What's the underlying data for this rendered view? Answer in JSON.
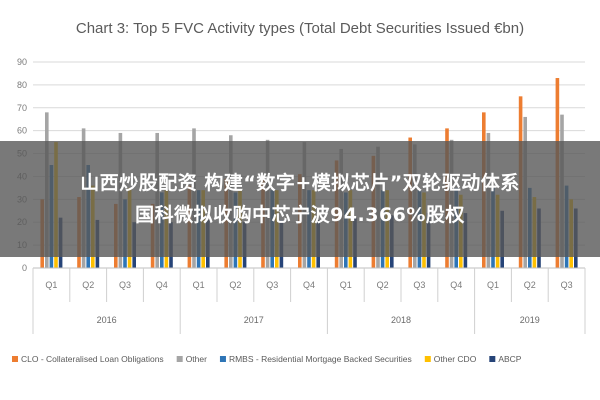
{
  "chart_data": {
    "type": "bar",
    "title": "Chart 3: Top 5 FVC Activity types (Total Debt Securities Issued €bn)",
    "ylim": [
      0,
      90
    ],
    "yticks": [
      0,
      10,
      20,
      30,
      40,
      50,
      60,
      70,
      80,
      90
    ],
    "grid": true,
    "legend_position": "bottom",
    "categories": [
      "Q1",
      "Q2",
      "Q3",
      "Q4",
      "Q1",
      "Q2",
      "Q3",
      "Q4",
      "Q1",
      "Q2",
      "Q3",
      "Q4",
      "Q1",
      "Q2",
      "Q3"
    ],
    "year_groups": [
      {
        "label": "2016",
        "count": 4
      },
      {
        "label": "2017",
        "count": 4
      },
      {
        "label": "2018",
        "count": 4
      },
      {
        "label": "2019",
        "count": 3
      }
    ],
    "series": [
      {
        "name": "CLO - Collateralised Loan Obligations",
        "color": "#ed7d31",
        "values": [
          30,
          31,
          28,
          28,
          36,
          39,
          40,
          41,
          47,
          49,
          57,
          61,
          68,
          75,
          83
        ]
      },
      {
        "name": "Other",
        "color": "#a5a5a5",
        "values": [
          68,
          61,
          59,
          59,
          61,
          58,
          56,
          55,
          52,
          53,
          54,
          56,
          59,
          66,
          67
        ]
      },
      {
        "name": "RMBS - Residential Mortgage Backed Securities",
        "color": "#2e75b6",
        "values": [
          45,
          45,
          30,
          33,
          34,
          33,
          34,
          34,
          33,
          34,
          34,
          35,
          35,
          35,
          36
        ]
      },
      {
        "name": "Other CDO",
        "color": "#ffc000",
        "values": [
          55,
          36,
          35,
          34,
          34,
          34,
          34,
          34,
          34,
          34,
          33,
          32,
          32,
          31,
          30
        ]
      },
      {
        "name": "ABCP",
        "color": "#264478",
        "values": [
          22,
          21,
          20,
          20,
          21,
          20,
          21,
          21,
          22,
          23,
          24,
          24,
          25,
          26,
          26
        ]
      }
    ]
  },
  "overlay": {
    "line1": "山西炒股配资 构建“数字+模拟芯片”双轮驱动体系",
    "line2": "国科微拟收购中芯宁波94.366%股权"
  }
}
